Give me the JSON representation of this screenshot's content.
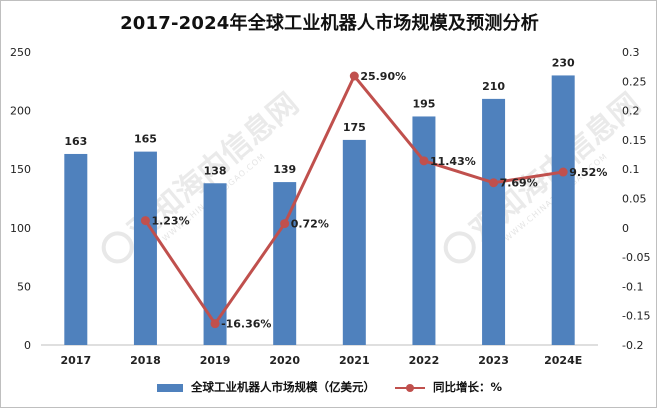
{
  "chart_data": {
    "type": "bar",
    "title": "2017-2024年全球工业机器人市场规模及预测分析",
    "categories": [
      "2017",
      "2018",
      "2019",
      "2020",
      "2021",
      "2022",
      "2023",
      "2024E"
    ],
    "series": [
      {
        "name": "全球工业机器人市场规模（亿美元）",
        "type": "bar",
        "axis": "left",
        "values": [
          163,
          165,
          138,
          139,
          175,
          195,
          210,
          230
        ],
        "labels": [
          "163",
          "165",
          "138",
          "139",
          "175",
          "195",
          "210",
          "230"
        ]
      },
      {
        "name": "同比增长：%",
        "type": "line",
        "axis": "right",
        "values": [
          null,
          0.0123,
          -0.1636,
          0.0072,
          0.259,
          0.1143,
          0.0769,
          0.0952
        ],
        "labels": [
          "",
          "1.23%",
          "-16.36%",
          "0.72%",
          "25.90%",
          "11.43%",
          "7.69%",
          "9.52%"
        ]
      }
    ],
    "ylim": [
      0,
      250
    ],
    "yticks": [
      "0",
      "50",
      "100",
      "150",
      "200",
      "250"
    ],
    "y2lim": [
      -0.2,
      0.3
    ],
    "y2ticks": [
      "-0.2",
      "-0.15",
      "-0.1",
      "-0.05",
      "0",
      "0.05",
      "0.1",
      "0.15",
      "0.2",
      "0.25",
      "0.3"
    ],
    "grid": false,
    "legend_position": "bottom",
    "colors": {
      "bar": "#4f81bd",
      "line": "#c0504d"
    }
  },
  "watermark": {
    "text": "观知海内信息网",
    "subtext": "WWW.CHINA1BAOGAO.COM"
  }
}
